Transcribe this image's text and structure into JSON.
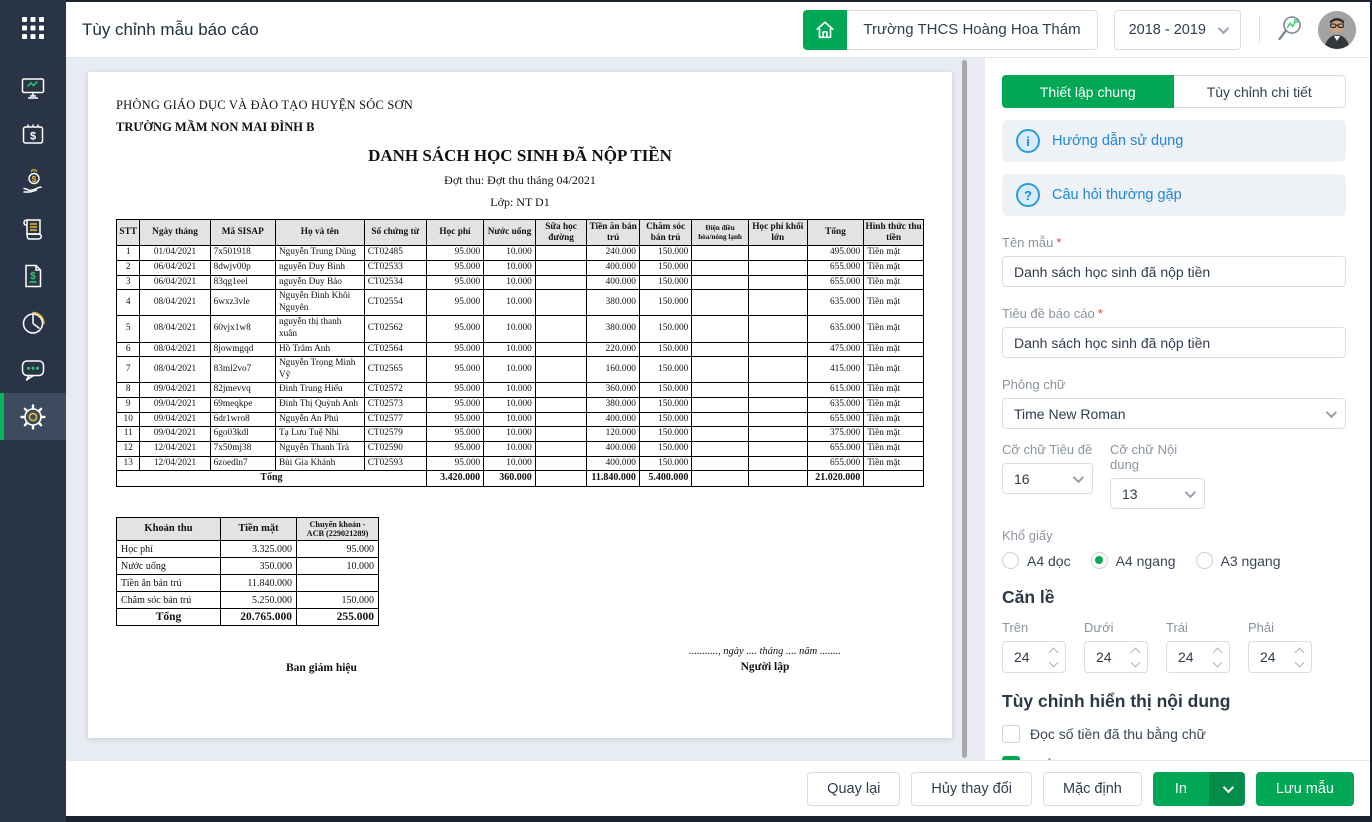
{
  "colors": {
    "accent_green": "#00a755",
    "sidebar_navy": "#2a3447",
    "link_blue": "#1d87dd",
    "preview_bg": "#e8ecf2",
    "table_header_gray": "#e3e3e3"
  },
  "header": {
    "title": "Tùy chỉnh mẫu báo cáo",
    "school_name": "Trường THCS Hoàng Hoa Thám",
    "year": "2018 - 2019"
  },
  "sidebar": {
    "items": [
      {
        "icon": "apps-grid-icon"
      },
      {
        "icon": "dashboard-monitor-icon"
      },
      {
        "icon": "calendar-money-icon"
      },
      {
        "icon": "hand-coin-icon"
      },
      {
        "icon": "receipt-scroll-icon"
      },
      {
        "icon": "invoice-document-icon"
      },
      {
        "icon": "pie-chart-icon"
      },
      {
        "icon": "chat-icon"
      },
      {
        "icon": "settings-gear-icon",
        "active": true
      }
    ]
  },
  "document": {
    "department": "PHÒNG GIÁO DỤC VÀ ĐÀO TẠO HUYỆN SÓC SƠN",
    "school": "TRƯỜNG MẦM NON MAI ĐÌNH B",
    "title": "DANH SÁCH HỌC SINH ĐÃ NỘP TIỀN",
    "subtitle": "Đợt thu: Đợt thu tháng 04/2021",
    "class_line": "Lớp: NT D1",
    "table": {
      "headers": [
        "STT",
        "Ngày tháng",
        "Mã SISAP",
        "Họ và tên",
        "Số chứng từ",
        "Học phí",
        "Nước uống",
        "Sữa học đường",
        "Tiền ăn bán trú",
        "Chăm sóc bán trú",
        "Điện điều hòa/nóng lạnh",
        "Học phí khối lớn",
        "Tổng",
        "Hình thức thu tiền"
      ],
      "rows": [
        [
          "1",
          "01/04/2021",
          "7x501918",
          "Nguyễn Trung Dũng",
          "CT02485",
          "95.000",
          "10.000",
          "",
          "240.000",
          "150.000",
          "",
          "",
          "495.000",
          "Tiền mặt"
        ],
        [
          "2",
          "06/04/2021",
          "8dwjv00p",
          "nguyễn Duy Bình",
          "CT02533",
          "95.000",
          "10.000",
          "",
          "400.000",
          "150.000",
          "",
          "",
          "655.000",
          "Tiền mặt"
        ],
        [
          "3",
          "06/04/2021",
          "83qg1eel",
          "nguyễn Duy Bảo",
          "CT02534",
          "95.000",
          "10.000",
          "",
          "400.000",
          "150.000",
          "",
          "",
          "655.000",
          "Tiền mặt"
        ],
        [
          "4",
          "08/04/2021",
          "6wxz3vle",
          "Nguyễn Đình Khôi Nguyên",
          "CT02554",
          "95.000",
          "10.000",
          "",
          "380.000",
          "150.000",
          "",
          "",
          "635.000",
          "Tiền mặt"
        ],
        [
          "5",
          "08/04/2021",
          "60vjx1w8",
          "nguyễn thị thanh xuân",
          "CT02562",
          "95.000",
          "10.000",
          "",
          "380.000",
          "150.000",
          "",
          "",
          "635.000",
          "Tiền mặt"
        ],
        [
          "6",
          "08/04/2021",
          "8jowmgqd",
          "Hồ Trâm Anh",
          "CT02564",
          "95.000",
          "10.000",
          "",
          "220.000",
          "150.000",
          "",
          "",
          "475.000",
          "Tiền mặt"
        ],
        [
          "7",
          "08/04/2021",
          "83ml2vo7",
          "Nguyễn Trọng Minh Vỹ",
          "CT02565",
          "95.000",
          "10.000",
          "",
          "160.000",
          "150.000",
          "",
          "",
          "415.000",
          "Tiền mặt"
        ],
        [
          "8",
          "09/04/2021",
          "82jmevvq",
          "Đinh Trung Hiếu",
          "CT02572",
          "95.000",
          "10.000",
          "",
          "360.000",
          "150.000",
          "",
          "",
          "615.000",
          "Tiền mặt"
        ],
        [
          "9",
          "09/04/2021",
          "69meqkpe",
          "Đinh Thị Quỳnh Anh",
          "CT02573",
          "95.000",
          "10.000",
          "",
          "380.000",
          "150.000",
          "",
          "",
          "635.000",
          "Tiền mặt"
        ],
        [
          "10",
          "09/04/2021",
          "6dr1wro8",
          "Nguyễn An Phú",
          "CT02577",
          "95.000",
          "10.000",
          "",
          "400.000",
          "150.000",
          "",
          "",
          "655.000",
          "Tiền mặt"
        ],
        [
          "11",
          "09/04/2021",
          "6go03kdl",
          "Tạ Lưu Tuệ Nhi",
          "CT02579",
          "95.000",
          "10.000",
          "",
          "120.000",
          "150.000",
          "",
          "",
          "375.000",
          "Tiền mặt"
        ],
        [
          "12",
          "12/04/2021",
          "7x50mj38",
          "Nguyễn Thanh Trà",
          "CT02590",
          "95.000",
          "10.000",
          "",
          "400.000",
          "150.000",
          "",
          "",
          "655.000",
          "Tiền mặt"
        ],
        [
          "13",
          "12/04/2021",
          "6zoedln7",
          "Bùi Gia Khánh",
          "CT02593",
          "95.000",
          "10.000",
          "",
          "400.000",
          "150.000",
          "",
          "",
          "655.000",
          "Tiền mặt"
        ]
      ],
      "total_label": "Tổng",
      "totals": [
        "3.420.000",
        "360.000",
        "",
        "11.840.000",
        "5.400.000",
        "",
        "",
        "21.020.000",
        ""
      ]
    },
    "summary_table": {
      "headers": [
        "Khoản thu",
        "Tiền mặt",
        "Chuyển khoản - ACB (229021289)"
      ],
      "rows": [
        [
          "Học phí",
          "3.325.000",
          "95.000"
        ],
        [
          "Nước uống",
          "350.000",
          "10.000"
        ],
        [
          "Tiền ăn bán trú",
          "11.840.000",
          ""
        ],
        [
          "Chăm sóc bán trú",
          "5.250.000",
          "150.000"
        ]
      ],
      "total": [
        "Tổng",
        "20.765.000",
        "255.000"
      ]
    },
    "signature": {
      "left": "Ban giám hiệu",
      "date_line": "..........., ngày .... tháng .... năm ........",
      "right": "Người lập"
    }
  },
  "panel": {
    "tabs": [
      {
        "label": "Thiết lập chung",
        "active": true
      },
      {
        "label": "Tùy chỉnh chi tiết",
        "active": false
      }
    ],
    "help_links": [
      {
        "icon": "info-icon",
        "glyph": "i",
        "label": "Hướng dẫn sử dụng"
      },
      {
        "icon": "question-icon",
        "glyph": "?",
        "label": "Câu hỏi thường gặp"
      }
    ],
    "fields": {
      "ten_mau": {
        "label": "Tên mẫu",
        "required": true,
        "value": "Danh sách học sinh đã nộp tiền"
      },
      "tieu_de": {
        "label": "Tiêu đề báo cáo",
        "required": true,
        "value": "Danh sách học sinh đã nộp tiền"
      },
      "font": {
        "label": "Phông chữ",
        "value": "Time New Roman"
      },
      "title_size": {
        "label": "Cỡ chữ Tiêu đề",
        "value": "16"
      },
      "body_size": {
        "label": "Cỡ chữ Nội dung",
        "value": "13"
      },
      "paper": {
        "label": "Khổ giấy",
        "options": [
          "A4 dọc",
          "A4 ngang",
          "A3 ngang"
        ],
        "selected_index": 1
      }
    },
    "margins": {
      "heading": "Căn lề",
      "items": [
        {
          "label": "Trên",
          "value": "24"
        },
        {
          "label": "Dưới",
          "value": "24"
        },
        {
          "label": "Trái",
          "value": "24"
        },
        {
          "label": "Phải",
          "value": "24"
        }
      ]
    },
    "content_display": {
      "heading": "Tùy chỉnh hiển thị nội dung",
      "checkboxes": [
        {
          "label": "Đọc số tiền đã thu bằng chữ",
          "checked": false
        },
        {
          "label": "Hiển thị chân chữ ký",
          "checked": true
        }
      ]
    }
  },
  "footer": {
    "back_label": "Quay lại",
    "cancel_label": "Hủy thay đổi",
    "default_label": "Mặc định",
    "print_label": "In",
    "save_label": "Lưu mẫu"
  }
}
